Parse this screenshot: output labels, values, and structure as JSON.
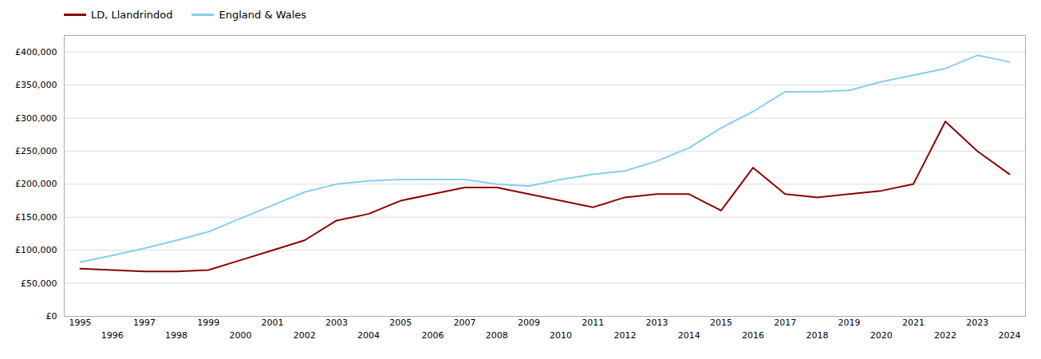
{
  "chart_data": {
    "type": "line",
    "x": [
      1995,
      1996,
      1997,
      1998,
      1999,
      2000,
      2001,
      2002,
      2003,
      2004,
      2005,
      2006,
      2007,
      2008,
      2009,
      2010,
      2011,
      2012,
      2013,
      2014,
      2015,
      2016,
      2017,
      2018,
      2019,
      2020,
      2021,
      2022,
      2023,
      2024
    ],
    "series": [
      {
        "name": "LD, Llandrindod",
        "color": "#8B0000",
        "values": [
          72000,
          70000,
          68000,
          68000,
          70000,
          85000,
          100000,
          115000,
          145000,
          155000,
          175000,
          185000,
          195000,
          195000,
          185000,
          175000,
          165000,
          180000,
          185000,
          185000,
          160000,
          225000,
          185000,
          180000,
          185000,
          190000,
          200000,
          295000,
          250000,
          215000
        ]
      },
      {
        "name": "England & Wales",
        "color": "#87CEEB",
        "values": [
          82000,
          92000,
          103000,
          115000,
          128000,
          148000,
          168000,
          188000,
          200000,
          205000,
          207000,
          207000,
          207000,
          200000,
          197000,
          207000,
          215000,
          220000,
          235000,
          255000,
          285000,
          310000,
          340000,
          340000,
          342000,
          355000,
          365000,
          375000,
          395000,
          385000
        ]
      }
    ],
    "xlim": [
      1994.5,
      2024.5
    ],
    "xticks": [
      1995,
      1996,
      1997,
      1998,
      1999,
      2000,
      2001,
      2002,
      2003,
      2004,
      2005,
      2006,
      2007,
      2008,
      2009,
      2010,
      2011,
      2012,
      2013,
      2014,
      2015,
      2016,
      2017,
      2018,
      2019,
      2020,
      2021,
      2022,
      2023,
      2024
    ],
    "ylim": [
      0,
      425000
    ],
    "yticks": [
      {
        "value": 0,
        "label": "£0"
      },
      {
        "value": 50000,
        "label": "£50,000"
      },
      {
        "value": 100000,
        "label": "£100,000"
      },
      {
        "value": 150000,
        "label": "£150,000"
      },
      {
        "value": 200000,
        "label": "£200,000"
      },
      {
        "value": 250000,
        "label": "£250,000"
      },
      {
        "value": 300000,
        "label": "£300,000"
      },
      {
        "value": 350000,
        "label": "£350,000"
      },
      {
        "value": 400000,
        "label": "£400,000"
      }
    ],
    "grid": true,
    "legend": "upper left"
  }
}
